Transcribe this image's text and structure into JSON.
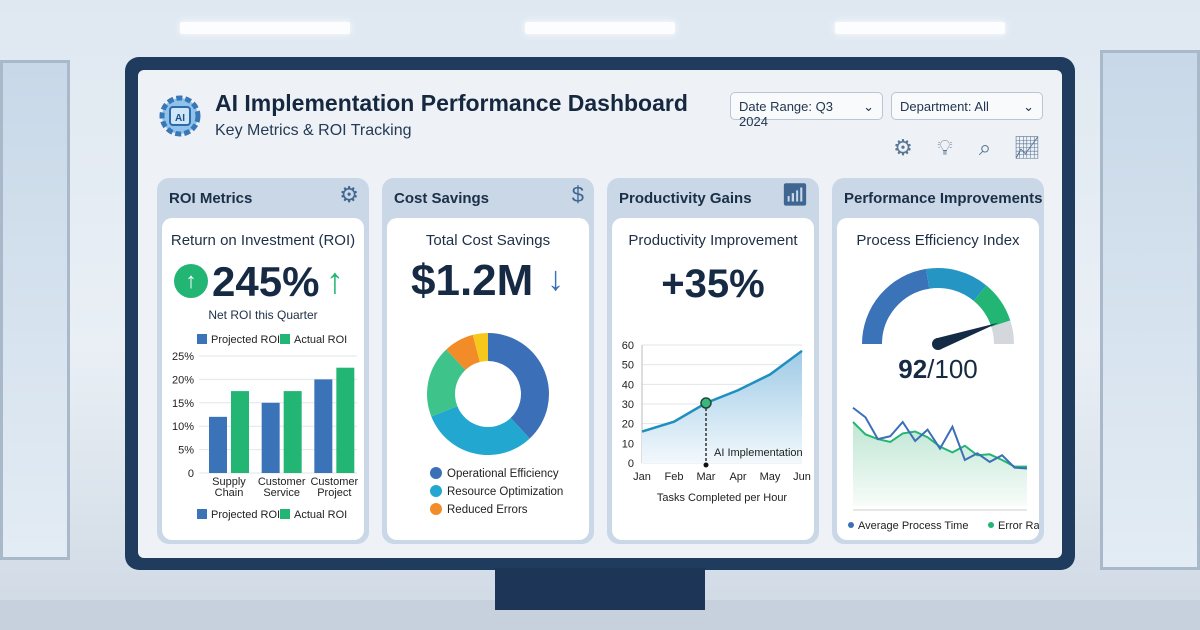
{
  "header": {
    "title": "AI Implementation Performance Dashboard",
    "subtitle": "Key Metrics & ROI Tracking",
    "logo_icon": "ai-chip-gear-icon",
    "date_range": "Date Range: Q3 2024",
    "department": "Department: All",
    "tools": [
      "ai-gear-icon",
      "lightbulb-icon",
      "chart-search-icon",
      "growth-chart-icon"
    ]
  },
  "colors": {
    "navy": "#1f3b5e",
    "blue": "#3b73b9",
    "green": "#22b573",
    "teal": "#1fa6c9",
    "orange": "#f28c28",
    "yellow": "#f6c81b",
    "gray": "#d4d7db"
  },
  "cards": [
    {
      "header": "ROI Metrics",
      "icon": "hand-gear-icon",
      "title": "Return on Investment (ROI)",
      "value": "245%",
      "caption": "Net ROI this Quarter",
      "trend": "up"
    },
    {
      "header": "Cost Savings",
      "icon": "hand-dollar-icon",
      "title": "Total Cost Savings",
      "value": "$1.2M",
      "trend": "down"
    },
    {
      "header": "Productivity Gains",
      "icon": "bar-growth-icon",
      "title": "Productivity Improvement",
      "value": "+35%"
    },
    {
      "header": "Performance Improvements",
      "title": "Process Efficiency Index",
      "value_main": "92",
      "value_rest": "/100"
    }
  ],
  "chart_data": [
    {
      "type": "bar",
      "categories": [
        "Supply Chain",
        "Customer Service",
        "Customer Project"
      ],
      "series": [
        {
          "name": "Projected ROI",
          "values": [
            12,
            15,
            20
          ],
          "color": "#3b73b9"
        },
        {
          "name": "Actual ROI",
          "values": [
            17.5,
            17.5,
            22.5
          ],
          "color": "#22b573"
        }
      ],
      "yticks": [
        "0",
        "5%",
        "10%",
        "15%",
        "20%",
        "25%"
      ],
      "ylim": [
        0,
        25
      ],
      "grid": true,
      "legend": "top and bottom"
    },
    {
      "type": "pie",
      "donut": true,
      "slices": [
        {
          "name": "Operational Efficiency",
          "value": 38,
          "color": "#3b6fb8"
        },
        {
          "name": "Resource Optimization",
          "value": 31,
          "color": "#22a7d0"
        },
        {
          "value": 19,
          "color": "#3ec48a"
        },
        {
          "name": "Reduced Errors",
          "value": 8,
          "color": "#f28c28"
        },
        {
          "value": 4,
          "color": "#f6c81b"
        }
      ],
      "legend": "bottom"
    },
    {
      "type": "area",
      "categories": [
        "Jan",
        "Feb",
        "Mar",
        "Apr",
        "May",
        "Jun"
      ],
      "values": [
        16,
        21,
        30.5,
        37,
        45,
        57
      ],
      "yticks": [
        "0",
        "10",
        "20",
        "30",
        "40",
        "50",
        "60"
      ],
      "ylim": [
        0,
        60
      ],
      "xlabel": "Tasks Completed per Hour",
      "annotation": {
        "x": "Mar",
        "label": "AI Implementation"
      },
      "grid": true
    },
    {
      "type": "gauge",
      "value": 92,
      "max": 100
    },
    {
      "type": "line",
      "series": [
        {
          "name": "Average Process Time",
          "color": "#3b6fb8",
          "values": [
            95,
            85,
            62,
            65,
            80,
            60,
            72,
            52,
            75,
            40,
            47,
            38,
            45,
            32,
            31
          ]
        },
        {
          "name": "Error Rates",
          "color": "#22b573",
          "values": [
            80,
            67,
            62,
            59,
            68,
            70,
            64,
            54,
            48,
            55,
            45,
            46,
            40,
            33,
            33
          ]
        }
      ],
      "legend": "bottom"
    }
  ]
}
